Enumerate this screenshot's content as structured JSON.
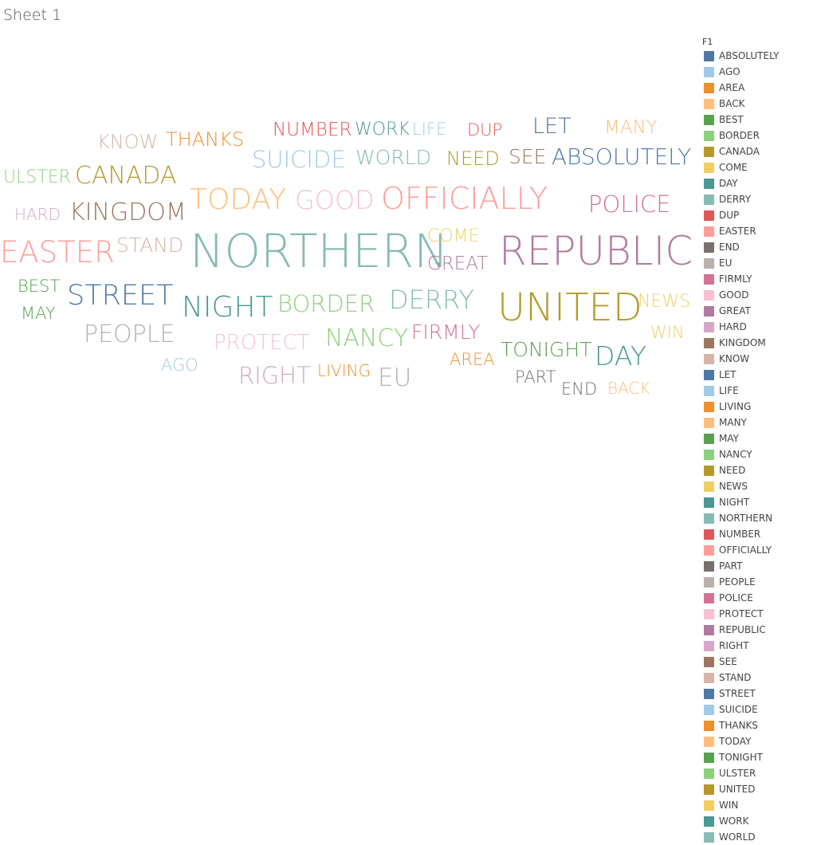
{
  "sheet": {
    "title": "Sheet 1"
  },
  "legend": {
    "title": "F1"
  },
  "colors": {
    "ABSOLUTELY": "#4e79a7",
    "AGO": "#a0cbe8",
    "AREA": "#f28e2b",
    "BACK": "#ffbe7d",
    "BEST": "#59a14f",
    "BORDER": "#8cd17d",
    "CANADA": "#b6992d",
    "COME": "#f1ce63",
    "DAY": "#499894",
    "DERRY": "#86bcb6",
    "DUP": "#e15759",
    "EASTER": "#ff9d9a",
    "END": "#79706e",
    "EU": "#bab0ac",
    "FIRMLY": "#d37295",
    "GOOD": "#fabfd2",
    "GREAT": "#b07aa1",
    "HARD": "#d4a6c8",
    "KINGDOM": "#9d7660",
    "KNOW": "#d7b5a6",
    "LET": "#4e79a7",
    "LIFE": "#a0cbe8",
    "LIVING": "#f28e2b",
    "MANY": "#ffbe7d",
    "MAY": "#59a14f",
    "NANCY": "#8cd17d",
    "NEED": "#b6992d",
    "NEWS": "#f1ce63",
    "NIGHT": "#499894",
    "NORTHERN": "#86bcb6",
    "NUMBER": "#e15759",
    "OFFICIALLY": "#ff9d9a",
    "PART": "#79706e",
    "PEOPLE": "#bab0ac",
    "POLICE": "#d37295",
    "PROTECT": "#fabfd2",
    "REPUBLIC": "#b07aa1",
    "RIGHT": "#d4a6c8",
    "SEE": "#9d7660",
    "STAND": "#d7b5a6",
    "STREET": "#4e79a7",
    "SUICIDE": "#a0cbe8",
    "THANKS": "#f28e2b",
    "TODAY": "#ffbe7d",
    "TONIGHT": "#59a14f",
    "ULSTER": "#8cd17d",
    "UNITED": "#b6992d",
    "WIN": "#f1ce63",
    "WORK": "#499894",
    "WORLD": "#86bcb6"
  },
  "chart_data": {
    "type": "wordcloud",
    "words": [
      "NORTHERN",
      "REPUBLIC",
      "UNITED",
      "OFFICIALLY",
      "EASTER",
      "TODAY",
      "KINGDOM",
      "NIGHT",
      "STREET",
      "CANADA",
      "GOOD",
      "DERRY",
      "BORDER",
      "ABSOLUTELY",
      "POLICE",
      "DAY",
      "PEOPLE",
      "NANCY",
      "SUICIDE",
      "LET",
      "NUMBER",
      "TONIGHT",
      "WORLD",
      "THANKS",
      "RIGHT",
      "FIRMLY",
      "STAND",
      "SEE",
      "EU",
      "MANY",
      "NEED",
      "PROTECT",
      "KNOW",
      "GREAT",
      "COME",
      "NEWS",
      "ULSTER",
      "WORK",
      "DUP",
      "BEST",
      "MAY",
      "LIFE",
      "HARD",
      "WIN",
      "AGO",
      "LIVING",
      "AREA",
      "PART",
      "BACK",
      "END"
    ],
    "legend_items": [
      "ABSOLUTELY",
      "AGO",
      "AREA",
      "BACK",
      "BEST",
      "BORDER",
      "CANADA",
      "COME",
      "DAY",
      "DERRY",
      "DUP",
      "EASTER",
      "END",
      "EU",
      "FIRMLY",
      "GOOD",
      "GREAT",
      "HARD",
      "KINGDOM",
      "KNOW",
      "LET",
      "LIFE",
      "LIVING",
      "MANY",
      "MAY",
      "NANCY",
      "NEED",
      "NEWS",
      "NIGHT",
      "NORTHERN",
      "NUMBER",
      "OFFICIALLY",
      "PART",
      "PEOPLE",
      "POLICE",
      "PROTECT",
      "REPUBLIC",
      "RIGHT",
      "SEE",
      "STAND",
      "STREET",
      "SUICIDE",
      "THANKS",
      "TODAY",
      "TONIGHT",
      "ULSTER",
      "UNITED",
      "WIN",
      "WORK",
      "WORLD"
    ],
    "legend_title": "F1",
    "legend_placement": "right"
  }
}
